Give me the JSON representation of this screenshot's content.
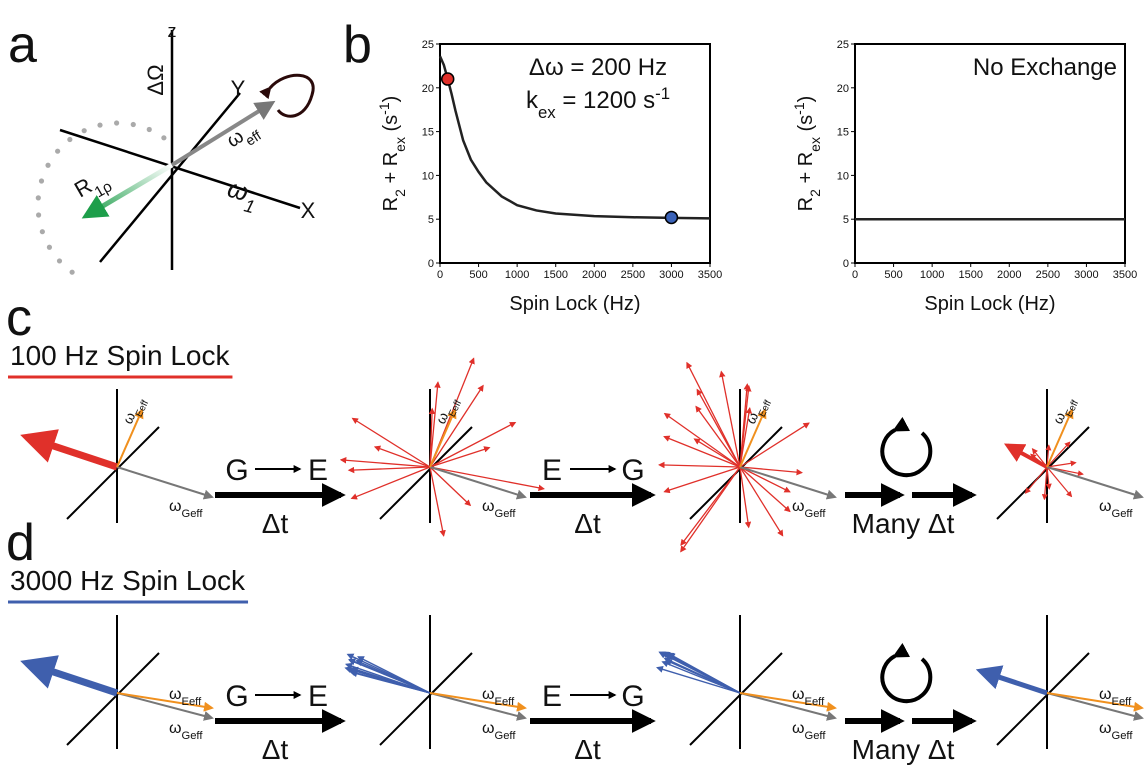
{
  "panels": {
    "a": "a",
    "b": "b",
    "c": "c",
    "d": "d"
  },
  "panel_a": {
    "z": "z",
    "delta_omega": "ΔΩ",
    "y_axis": "Y",
    "x_axis": "X",
    "omega_1": [
      {
        "text": "ω"
      },
      {
        "text": "1",
        "style": "sub"
      }
    ],
    "omega_eff": [
      {
        "text": "ω"
      },
      {
        "text": "eff",
        "style": "sub"
      }
    ],
    "r1rho": [
      {
        "text": "R"
      },
      {
        "text": "1ρ",
        "style": "sub"
      }
    ]
  },
  "chart_data": [
    {
      "type": "line",
      "x": [
        0,
        50,
        100,
        150,
        200,
        300,
        400,
        500,
        600,
        800,
        1000,
        1250,
        1500,
        2000,
        2500,
        3000,
        3500
      ],
      "values": [
        23.6,
        22.6,
        21,
        19.3,
        17.4,
        14,
        11.8,
        10.4,
        9.2,
        7.6,
        6.6,
        6,
        5.65,
        5.35,
        5.22,
        5.15,
        5.1
      ],
      "color": "#222222",
      "markers": [
        {
          "x": 100,
          "y": 21,
          "color": "#e0302a"
        },
        {
          "x": 3000,
          "y": 5.2,
          "color": "#3a62b8"
        }
      ],
      "xlabel": "Spin Lock (Hz)",
      "ylabel": [
        {
          "text": "R"
        },
        {
          "text": "2",
          "style": "sub"
        },
        {
          "text": " + R"
        },
        {
          "text": "ex",
          "style": "sub"
        },
        {
          "text": " (s"
        },
        {
          "text": "-1",
          "style": "sup"
        },
        {
          "text": ")"
        }
      ],
      "annotations": [
        [
          {
            "text": "Δω = 200 Hz"
          }
        ],
        [
          {
            "text": "k"
          },
          {
            "text": "ex",
            "style": "sub"
          },
          {
            "text": " = 1200 s"
          },
          {
            "text": "-1",
            "style": "sup"
          }
        ]
      ],
      "xlim": [
        0,
        3500
      ],
      "xticks": [
        0,
        500,
        1000,
        1500,
        2000,
        2500,
        3000,
        3500
      ],
      "ylim": [
        0,
        25
      ],
      "yticks": [
        0,
        5,
        10,
        15,
        20,
        25
      ]
    },
    {
      "type": "line",
      "x": [
        0,
        3500
      ],
      "values": [
        5,
        5
      ],
      "color": "#222222",
      "xlabel": "Spin Lock (Hz)",
      "ylabel": [
        {
          "text": "R"
        },
        {
          "text": "2",
          "style": "sub"
        },
        {
          "text": " + R"
        },
        {
          "text": "ex",
          "style": "sub"
        },
        {
          "text": " (s"
        },
        {
          "text": "-1",
          "style": "sup"
        },
        {
          "text": ")"
        }
      ],
      "annotations": [
        [
          {
            "text": "No Exchange"
          }
        ]
      ],
      "xlim": [
        0,
        3500
      ],
      "xticks": [
        0,
        500,
        1000,
        1500,
        2000,
        2500,
        3000,
        3500
      ],
      "ylim": [
        0,
        25
      ],
      "yticks": [
        0,
        5,
        10,
        15,
        20,
        25
      ]
    }
  ],
  "panel_c": {
    "title": "100 Hz Spin Lock",
    "color": "#e0302a"
  },
  "panel_d": {
    "title": "3000 Hz Spin Lock",
    "color": "#3f5fad"
  },
  "vectors": {
    "omega_Eeff": [
      {
        "text": "ω"
      },
      {
        "text": "Eeff",
        "style": "sub"
      }
    ],
    "omega_Geff": [
      {
        "text": "ω"
      },
      {
        "text": "Geff",
        "style": "sub"
      }
    ]
  },
  "steps": {
    "g": "G",
    "e": "E",
    "delta_t": "Δt",
    "many_delta_t": "Many Δt"
  }
}
